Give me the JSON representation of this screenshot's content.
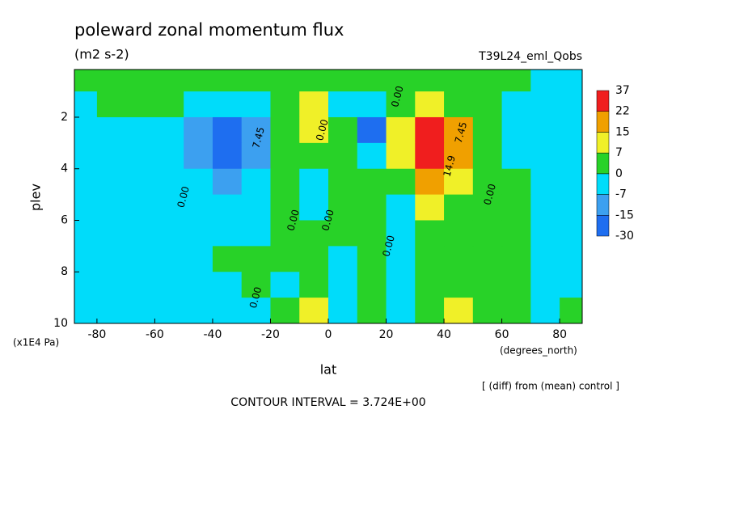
{
  "chart_data": {
    "type": "contour",
    "title": "poleward zonal momentum flux",
    "subtitle": "(m2 s-2)",
    "experiment": "T39L24_eml_Qobs",
    "xlabel": "lat",
    "xunits": "(degrees_north)",
    "ylabel": "plev",
    "yunits": "(x1E4 Pa)",
    "note": "[ (diff) from (mean) control ]",
    "contour_interval": "CONTOUR INTERVAL = 3.724E+00",
    "xlim": [
      -87.8,
      87.8
    ],
    "ylim": [
      10,
      0.15
    ],
    "xticks": [
      -80,
      -60,
      -40,
      -20,
      0,
      20,
      40,
      60,
      80
    ],
    "yticks": [
      2,
      4,
      6,
      8,
      10
    ],
    "x": [
      -85,
      -75,
      -65,
      -55,
      -45,
      -35,
      -25,
      -15,
      -5,
      5,
      15,
      25,
      35,
      45,
      55,
      65,
      75,
      85
    ],
    "y": [
      0.5,
      1.5,
      2.5,
      3.5,
      4.5,
      5.5,
      6.5,
      7.5,
      8.5,
      9.5
    ],
    "z": [
      [
        2,
        2,
        2,
        2,
        2,
        2,
        2,
        2,
        2,
        2,
        2,
        2,
        2,
        2,
        2,
        2,
        -2,
        -2
      ],
      [
        -2,
        2,
        2,
        2,
        -3,
        -6,
        -2,
        2,
        9,
        -2,
        -4,
        3,
        12,
        6,
        2,
        -2,
        -2,
        -2
      ],
      [
        -2,
        -2,
        -2,
        -3,
        -8,
        -18,
        -9,
        2,
        9,
        2,
        -16,
        10,
        30,
        18,
        5,
        -2,
        -4,
        -2
      ],
      [
        -2,
        -2,
        -2,
        -3,
        -10,
        -20,
        -10,
        2,
        2,
        2,
        -3,
        12,
        26,
        16,
        6,
        -2,
        -3,
        -2
      ],
      [
        -2,
        -2,
        -2,
        -2,
        -3,
        -8,
        -3,
        2,
        -2,
        2,
        2,
        4,
        16,
        8,
        3,
        2,
        -2,
        -2
      ],
      [
        -2,
        -2,
        -2,
        -2,
        -2,
        -3,
        -2,
        2,
        -2,
        2,
        2,
        -2,
        10,
        4,
        3,
        2,
        -2,
        -2
      ],
      [
        -2,
        -2,
        -2,
        -2,
        -2,
        -2,
        -2,
        2,
        2,
        2,
        2,
        -2,
        2,
        2,
        2,
        2,
        -2,
        -2
      ],
      [
        -2,
        -2,
        -2,
        -2,
        -2,
        2,
        2,
        2,
        2,
        -2,
        2,
        -2,
        2,
        2,
        2,
        2,
        -2,
        -2
      ],
      [
        -2,
        -2,
        -2,
        -4,
        -2,
        -3,
        2,
        -2,
        2,
        -2,
        2,
        -3,
        2,
        4,
        2,
        2,
        -2,
        -2
      ],
      [
        -2,
        -2,
        -2,
        -6,
        -2,
        -2,
        -4,
        2,
        9,
        -3,
        3,
        -2,
        2,
        10,
        3,
        2,
        -2,
        2
      ]
    ],
    "levels": [
      -30,
      -15,
      -7,
      0,
      7,
      15,
      22,
      37
    ],
    "colors": [
      "#1e6ef0",
      "#3ca0f0",
      "#00dcfa",
      "#28d228",
      "#f0f028",
      "#f0a000",
      "#f01e1e"
    ],
    "contour_labels": [
      {
        "text": "0.00",
        "lat": 24,
        "plev": 1.2
      },
      {
        "text": "7.45",
        "lat": 46,
        "plev": 2.6
      },
      {
        "text": "14.9",
        "lat": 42,
        "plev": 3.9
      },
      {
        "text": "7.45",
        "lat": -24,
        "plev": 2.8
      },
      {
        "text": "0.00",
        "lat": -2,
        "plev": 2.5
      },
      {
        "text": "0.00",
        "lat": -50,
        "plev": 5.1
      },
      {
        "text": "0.00",
        "lat": -12,
        "plev": 6.0
      },
      {
        "text": "0.00",
        "lat": 0,
        "plev": 6.0
      },
      {
        "text": "0.00",
        "lat": 21,
        "plev": 7.0
      },
      {
        "text": "0.00",
        "lat": 56,
        "plev": 5.0
      },
      {
        "text": "0.00",
        "lat": -25,
        "plev": 9.0
      }
    ]
  }
}
